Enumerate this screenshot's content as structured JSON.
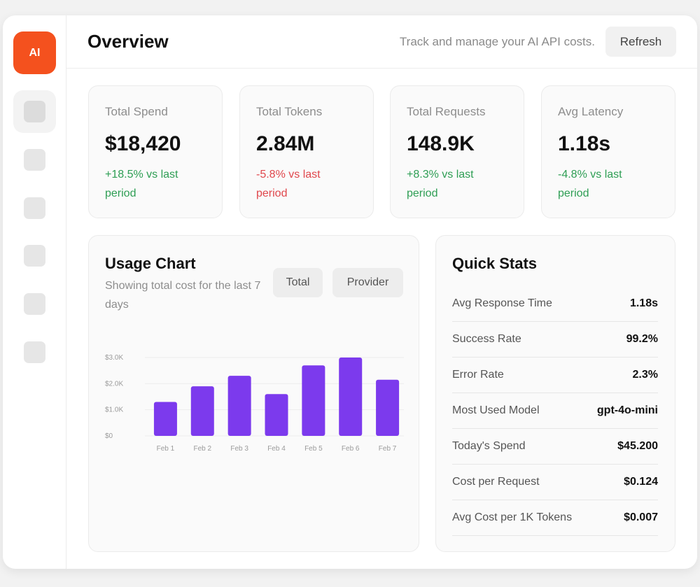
{
  "sidebar": {
    "logo": "AI",
    "nav_items": [
      "nav-1",
      "nav-2",
      "nav-3",
      "nav-4",
      "nav-5",
      "nav-6"
    ]
  },
  "header": {
    "title": "Overview",
    "subtitle": "Track and manage your AI API costs.",
    "refresh_label": "Refresh"
  },
  "stats": [
    {
      "label": "Total Spend",
      "value": "$18,420",
      "change": "+18.5% vs last period",
      "trend": "positive"
    },
    {
      "label": "Total Tokens",
      "value": "2.84M",
      "change": "-5.8% vs last period",
      "trend": "negative"
    },
    {
      "label": "Total Requests",
      "value": "148.9K",
      "change": "+8.3% vs last period",
      "trend": "positive"
    },
    {
      "label": "Avg Latency",
      "value": "1.18s",
      "change": "-4.8% vs last period",
      "trend": "positive"
    }
  ],
  "usage_chart": {
    "title": "Usage Chart",
    "subtitle": "Showing total cost for the last 7 days",
    "toggle_total": "Total",
    "toggle_provider": "Provider"
  },
  "chart_data": {
    "type": "bar",
    "categories": [
      "Feb 1",
      "Feb 2",
      "Feb 3",
      "Feb 4",
      "Feb 5",
      "Feb 6",
      "Feb 7"
    ],
    "values": [
      1300,
      1900,
      2300,
      1600,
      2700,
      3000,
      2150
    ],
    "y_ticks": [
      "$0",
      "$1.0K",
      "$2.0K",
      "$3.0K"
    ],
    "ylim": [
      0,
      3000
    ],
    "bar_color": "#7c3aed",
    "grid": true
  },
  "quick_stats": {
    "title": "Quick Stats",
    "rows": [
      {
        "label": "Avg Response Time",
        "value": "1.18s"
      },
      {
        "label": "Success Rate",
        "value": "99.2%"
      },
      {
        "label": "Error Rate",
        "value": "2.3%"
      },
      {
        "label": "Most Used Model",
        "value": "gpt-4o-mini"
      },
      {
        "label": "Today's Spend",
        "value": "$45.200"
      },
      {
        "label": "Cost per Request",
        "value": "$0.124"
      },
      {
        "label": "Avg Cost per 1K Tokens",
        "value": "$0.007"
      }
    ]
  },
  "colors": {
    "accent": "#f4511e",
    "positive": "#2e9e54",
    "negative": "#e0474c",
    "bar": "#7c3aed"
  }
}
